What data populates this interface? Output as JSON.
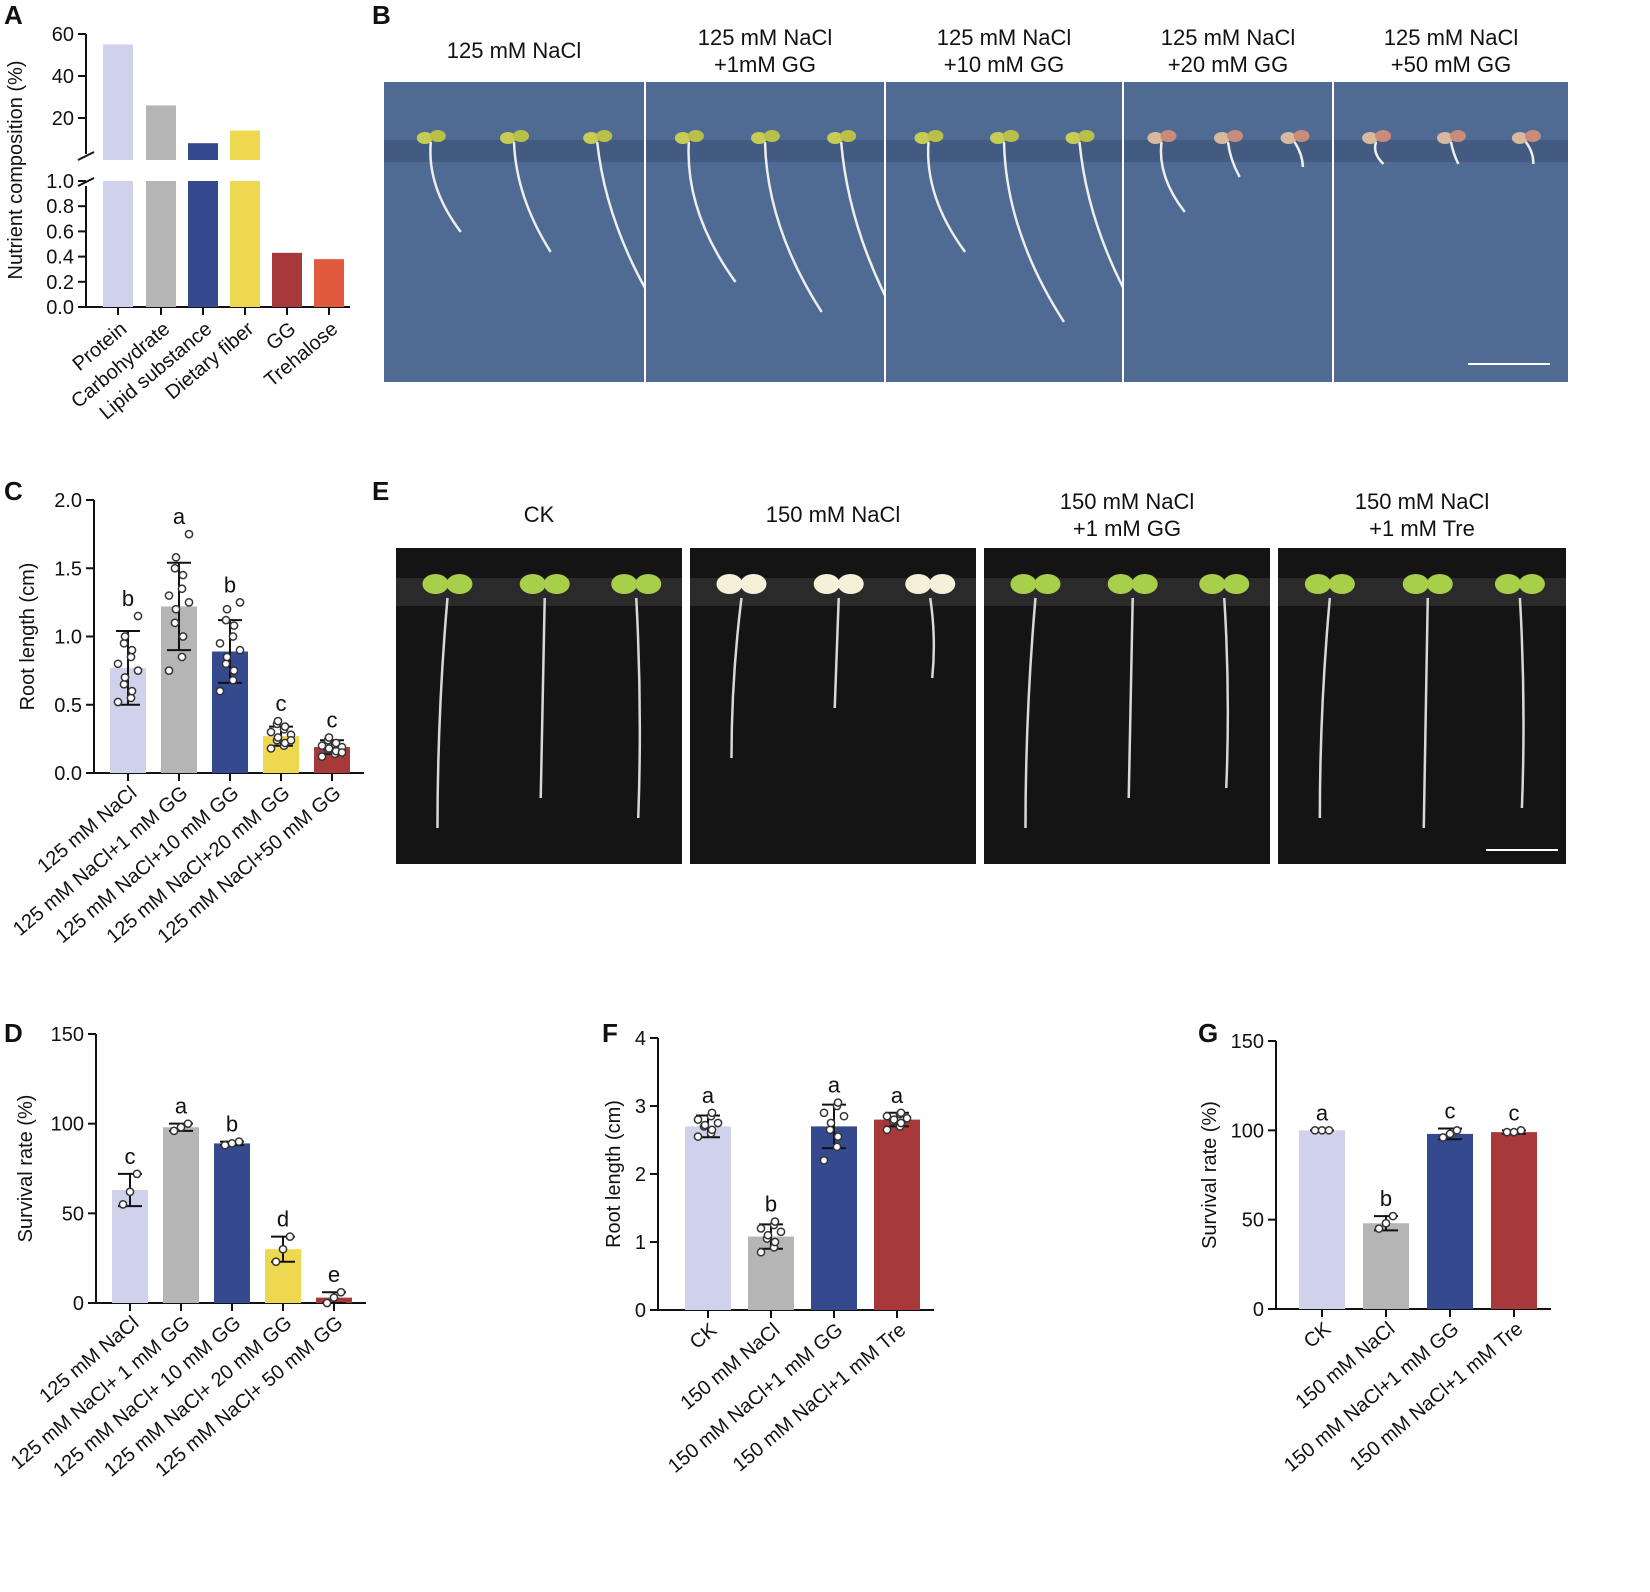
{
  "panels": {
    "A": "A",
    "B": "B",
    "C": "C",
    "D": "D",
    "E": "E",
    "F": "F",
    "G": "G"
  },
  "photo_B": {
    "captions": [
      [
        "125 mM NaCl",
        ""
      ],
      [
        "125 mM NaCl",
        "+1mM GG"
      ],
      [
        "125 mM NaCl",
        "+10 mM GG"
      ],
      [
        "125 mM NaCl",
        "+20 mM GG"
      ],
      [
        "125 mM NaCl",
        "+50 mM GG"
      ]
    ],
    "background": "#4f6b94"
  },
  "photo_E": {
    "captions": [
      [
        "CK",
        ""
      ],
      [
        "150 mM NaCl",
        ""
      ],
      [
        "150 mM NaCl",
        "+1 mM GG"
      ],
      [
        "150 mM NaCl",
        "+1 mM Tre"
      ]
    ],
    "background": "#141414"
  },
  "chart_data": [
    {
      "panel": "A",
      "type": "bar",
      "ylabel": "Nutrient composition (%)",
      "axis_break": {
        "lower_range": [
          0,
          1.0
        ],
        "upper_range": [
          0,
          60
        ]
      },
      "lower_ticks": [
        "0.0",
        "0.2",
        "0.4",
        "0.6",
        "0.8",
        "1.0"
      ],
      "upper_ticks": [
        "20",
        "40",
        "60"
      ],
      "categories": [
        "Protein",
        "Carbohydrate",
        "Lipid substance",
        "Dietary fiber",
        "GG",
        "Trehalose"
      ],
      "values": [
        55,
        26,
        8,
        14,
        0.43,
        0.38
      ],
      "colors": [
        "#cfd2ea",
        "#b5b5b5",
        "#34498e",
        "#eed84f",
        "#a8393a",
        "#e05a3f"
      ]
    },
    {
      "panel": "C",
      "type": "bar",
      "ylabel": "Root length (cm)",
      "ylim": [
        0,
        2.0
      ],
      "yticks": [
        "0.0",
        "0.5",
        "1.0",
        "1.5",
        "2.0"
      ],
      "categories": [
        "125 mM NaCl",
        "125 mM NaCl+1 mM GG",
        "125 mM NaCl+10 mM GG",
        "125 mM NaCl+20 mM GG",
        "125 mM NaCl+50 mM GG"
      ],
      "values": [
        0.77,
        1.22,
        0.89,
        0.27,
        0.19
      ],
      "sd": [
        0.27,
        0.32,
        0.23,
        0.07,
        0.05
      ],
      "letters": [
        "b",
        "a",
        "b",
        "c",
        "c"
      ],
      "points": [
        [
          0.52,
          0.55,
          0.6,
          0.65,
          0.7,
          0.75,
          0.8,
          0.85,
          0.9,
          0.95,
          1.0,
          1.15
        ],
        [
          0.75,
          0.85,
          1.0,
          1.1,
          1.2,
          1.25,
          1.3,
          1.35,
          1.45,
          1.5,
          1.58,
          1.75
        ],
        [
          0.6,
          0.68,
          0.75,
          0.8,
          0.85,
          0.9,
          0.95,
          1.0,
          1.08,
          1.12,
          1.2,
          1.25
        ],
        [
          0.18,
          0.2,
          0.22,
          0.24,
          0.26,
          0.28,
          0.3,
          0.32,
          0.34,
          0.36,
          0.38,
          0.24
        ],
        [
          0.12,
          0.14,
          0.16,
          0.17,
          0.18,
          0.19,
          0.2,
          0.21,
          0.22,
          0.24,
          0.26,
          0.15
        ]
      ],
      "colors": [
        "#cfd2ea",
        "#b5b5b5",
        "#34498e",
        "#eed84f",
        "#a8393a"
      ]
    },
    {
      "panel": "D",
      "type": "bar",
      "ylabel": "Survival rate (%)",
      "ylim": [
        0,
        150
      ],
      "yticks": [
        "0",
        "50",
        "100",
        "150"
      ],
      "categories": [
        "125 mM NaCl",
        "125 mM NaCl+ 1 mM GG",
        "125 mM NaCl+ 10 mM GG",
        "125 mM NaCl+ 20 mM GG",
        "125 mM NaCl+ 50 mM GG"
      ],
      "values": [
        63,
        98,
        89,
        30,
        3
      ],
      "sd": [
        9,
        2,
        1,
        7,
        3
      ],
      "letters": [
        "c",
        "a",
        "b",
        "d",
        "e"
      ],
      "points": [
        [
          55,
          62,
          72
        ],
        [
          96,
          98,
          100
        ],
        [
          88,
          89,
          90
        ],
        [
          23,
          30,
          37
        ],
        [
          0,
          3,
          6
        ]
      ],
      "colors": [
        "#cfd2ea",
        "#b5b5b5",
        "#34498e",
        "#eed84f",
        "#a8393a"
      ]
    },
    {
      "panel": "F",
      "type": "bar",
      "ylabel": "Root length (cm)",
      "ylim": [
        0,
        4
      ],
      "yticks": [
        "0",
        "1",
        "2",
        "3",
        "4"
      ],
      "categories": [
        "CK",
        "150 mM NaCl",
        "150 mM NaCl+1 mM GG",
        "150 mM NaCl+1 mM Tre"
      ],
      "values": [
        2.7,
        1.08,
        2.7,
        2.8
      ],
      "sd": [
        0.16,
        0.18,
        0.32,
        0.1
      ],
      "letters": [
        "a",
        "b",
        "a",
        "a"
      ],
      "points": [
        [
          2.55,
          2.6,
          2.65,
          2.7,
          2.72,
          2.75,
          2.8,
          2.85,
          2.9
        ],
        [
          0.85,
          0.92,
          1.0,
          1.05,
          1.1,
          1.15,
          1.2,
          1.25,
          1.3
        ],
        [
          2.2,
          2.4,
          2.55,
          2.65,
          2.75,
          2.85,
          2.9,
          3.0,
          3.05
        ],
        [
          2.65,
          2.7,
          2.75,
          2.78,
          2.8,
          2.82,
          2.85,
          2.88,
          2.9
        ]
      ],
      "colors": [
        "#cfd2ea",
        "#b5b5b5",
        "#34498e",
        "#a8393a"
      ]
    },
    {
      "panel": "G",
      "type": "bar",
      "ylabel": "Survival rate (%)",
      "ylim": [
        0,
        150
      ],
      "yticks": [
        "0",
        "50",
        "100",
        "150"
      ],
      "categories": [
        "CK",
        "150 mM NaCl",
        "150 mM NaCl+1 mM GG",
        "150 mM NaCl+1 mM Tre"
      ],
      "values": [
        100,
        48,
        98,
        99
      ],
      "sd": [
        0,
        4,
        3,
        1
      ],
      "letters": [
        "a",
        "b",
        "c",
        "c"
      ],
      "points": [
        [
          100,
          100,
          100
        ],
        [
          45,
          48,
          52
        ],
        [
          96,
          98,
          100
        ],
        [
          99,
          99,
          100
        ]
      ],
      "colors": [
        "#cfd2ea",
        "#b5b5b5",
        "#34498e",
        "#a8393a"
      ]
    }
  ]
}
